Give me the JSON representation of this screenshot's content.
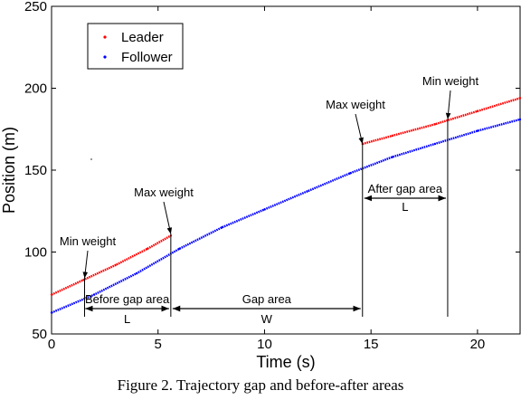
{
  "chart_data": {
    "type": "scatter",
    "title": "",
    "xlabel": "Time (s)",
    "ylabel": "Position (m)",
    "xlim": [
      0,
      22
    ],
    "ylim": [
      50,
      250
    ],
    "xticks": [
      0,
      5,
      10,
      15,
      20
    ],
    "yticks": [
      50,
      100,
      150,
      200,
      250
    ],
    "grid": false,
    "legend_position": "top-left",
    "series": [
      {
        "name": "Leader",
        "color": "#ff0000",
        "segments": [
          [
            [
              0,
              74
            ],
            [
              1.5,
              83
            ],
            [
              3,
              92
            ],
            [
              4.5,
              102
            ],
            [
              5.6,
              110
            ]
          ],
          [
            [
              14.6,
              166
            ],
            [
              16,
              171
            ],
            [
              18,
              178
            ],
            [
              20,
              186
            ],
            [
              22,
              194
            ]
          ]
        ]
      },
      {
        "name": "Follower",
        "color": "#0000ff",
        "segments": [
          [
            [
              0,
              63
            ],
            [
              2,
              74
            ],
            [
              4,
              87
            ],
            [
              6,
              102
            ],
            [
              8,
              115
            ],
            [
              10,
              126
            ],
            [
              12,
              137
            ],
            [
              14,
              148
            ],
            [
              16,
              158
            ],
            [
              18,
              166
            ],
            [
              20,
              174
            ],
            [
              22,
              181
            ]
          ]
        ]
      }
    ],
    "annotations": [
      {
        "label": "Min weight",
        "at": [
          1.55,
          84
        ]
      },
      {
        "label": "Max weight",
        "at": [
          5.6,
          111
        ]
      },
      {
        "label": "Max weight",
        "at": [
          14.6,
          166
        ]
      },
      {
        "label": "Min weight",
        "at": [
          18.6,
          181
        ]
      },
      {
        "label": "Before gap area",
        "from": 1.5,
        "to": 5.6
      },
      {
        "label": "L",
        "from": 1.5,
        "to": 5.6
      },
      {
        "label": "Gap area",
        "from": 5.6,
        "to": 14.6
      },
      {
        "label": "W",
        "from": 5.6,
        "to": 14.6
      },
      {
        "label": "After gap area",
        "from": 14.6,
        "to": 18.6
      },
      {
        "label": "L",
        "from": 14.6,
        "to": 18.6
      }
    ]
  },
  "caption": "Figure 2. Trajectory gap and before-after areas"
}
